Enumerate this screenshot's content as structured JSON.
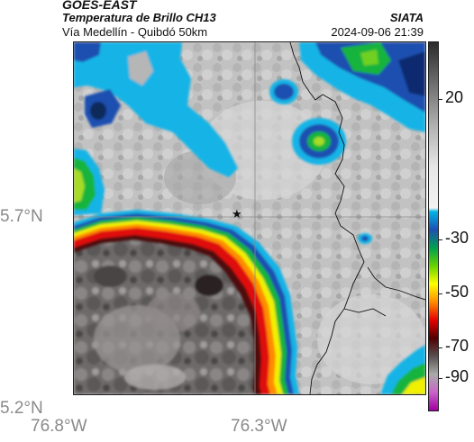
{
  "header": {
    "satellite": "GOES-EAST",
    "product": "Temperatura de Brillo CH13",
    "region": "Vía Medellín - Quibdó 50km",
    "agency": "SIATA",
    "datetime": "2024-09-06 21:39"
  },
  "axes": {
    "lat_labels": [
      "5.7°N",
      "5.2°N"
    ],
    "lon_labels": [
      "76.8°W",
      "76.3°W"
    ]
  },
  "colorbar": {
    "tick_labels": [
      "20",
      "-30",
      "-50",
      "-70",
      "-90"
    ],
    "colors_top_to_bottom": [
      "#2b2b2b",
      "#6e6e6e",
      "#b0b0b0",
      "#e6e6e6",
      "#f2f2f2",
      "#00b4e6",
      "#1e50b4",
      "#00a050",
      "#64d200",
      "#ffff00",
      "#ff8c00",
      "#e60000",
      "#500000",
      "#5a5050",
      "#aaaaaa",
      "#c864c8",
      "#a000a0"
    ]
  },
  "map": {
    "marker_symbol": "★",
    "colors": {
      "clear_sky_gray": "#c4c4c4",
      "cold_cloud_blue": "#1c4fb0",
      "cyan": "#19b4e6",
      "green": "#18b43c",
      "yellow": "#f0f000",
      "red": "#e01010",
      "dark_core": "#3a3232"
    }
  }
}
